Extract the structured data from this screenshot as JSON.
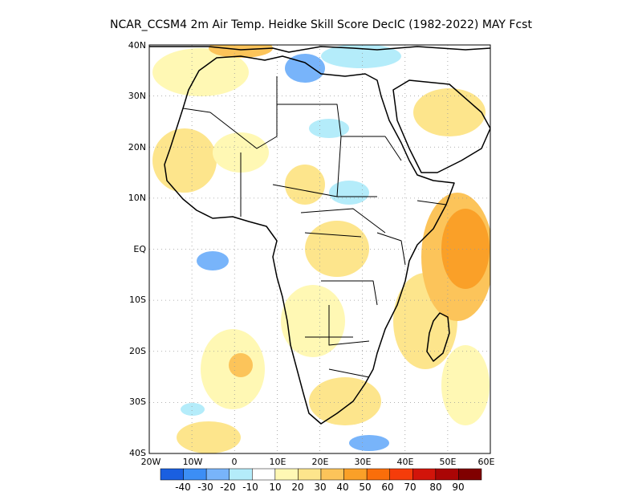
{
  "title": "NCAR_CCSM4   2m Air Temp. Heidke Skill Score DecIC (1982-2022) MAY Fcst",
  "map": {
    "lat_labels": [
      "40N",
      "30N",
      "20N",
      "10N",
      "EQ",
      "10S",
      "20S",
      "30S",
      "40S"
    ],
    "lat_values": [
      40,
      30,
      20,
      10,
      0,
      -10,
      -20,
      -30,
      -40
    ],
    "lon_labels": [
      "20W",
      "10W",
      "0",
      "10E",
      "20E",
      "30E",
      "40E",
      "50E",
      "60E"
    ],
    "lon_values": [
      -20,
      -10,
      0,
      10,
      20,
      30,
      40,
      50,
      60
    ],
    "lon_range": [
      -20,
      60
    ],
    "lat_range": [
      -40,
      40
    ],
    "grid": "dotted",
    "land_outline_color": "#000000"
  },
  "colorbar": {
    "labels": [
      "-40",
      "-30",
      "-20",
      "-10",
      "10",
      "20",
      "30",
      "40",
      "50",
      "60",
      "70",
      "80",
      "90"
    ],
    "colors": [
      "#1a5fe0",
      "#3c8ef5",
      "#78b4fa",
      "#b4ecfa",
      "#ffffff",
      "#fff8b4",
      "#fde58c",
      "#fcc45a",
      "#faa028",
      "#fa6e0a",
      "#f53c0a",
      "#d2140a",
      "#aa0505",
      "#800000"
    ]
  }
}
